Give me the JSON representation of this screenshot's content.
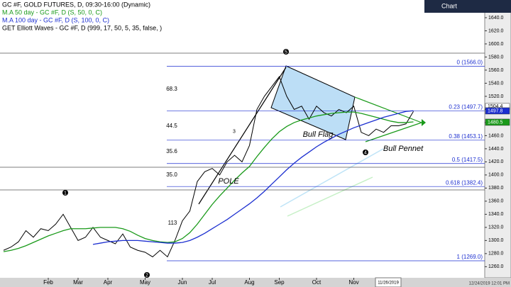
{
  "chart_data": {
    "type": "line",
    "header_tab": "Chart",
    "legend_lines": [
      {
        "text": "GC #F, GOLD FUTURES, D, 09:30-16:00 (Dynamic)",
        "color": "#000000"
      },
      {
        "text": "M.A 50 day - GC #F, D (S, 50, 0, C)",
        "color": "#1a9a1a"
      },
      {
        "text": "M.A 100 day - GC #F, D (S, 100, 0, C)",
        "color": "#1c2fd0"
      },
      {
        "text": "GET Elliott Waves - GC #F, D (999, 17, 50, 5, 35, false, )",
        "color": "#000000"
      }
    ],
    "categories": [
      null,
      null,
      null,
      null,
      null,
      null,
      "Feb",
      null,
      null,
      null,
      "Mar",
      null,
      null,
      null,
      "Apr",
      null,
      null,
      null,
      null,
      "May",
      null,
      null,
      null,
      null,
      "Jun",
      null,
      null,
      null,
      "Jul",
      null,
      null,
      null,
      null,
      "Aug",
      null,
      null,
      null,
      "Sep",
      null,
      null,
      null,
      null,
      "Oct",
      null,
      null,
      null,
      null,
      "Nov",
      null,
      null,
      null,
      null,
      null,
      null,
      null,
      null
    ],
    "series": [
      {
        "color": "#000000",
        "values": [
          1285,
          1290,
          1298,
          1315,
          1305,
          1318,
          1315,
          1325,
          1340,
          1320,
          1300,
          1305,
          1320,
          1305,
          1300,
          1295,
          1310,
          1290,
          1285,
          1282,
          1275,
          1285,
          1275,
          1300,
          1330,
          1345,
          1390,
          1405,
          1410,
          1400,
          1420,
          1430,
          1420,
          1445,
          1500,
          1520,
          1535,
          1550,
          1520,
          1500,
          1505,
          1485,
          1505,
          1495,
          1490,
          1500,
          1495,
          1505,
          1465,
          1460,
          1470,
          1465,
          1475,
          1475,
          1478,
          1497
        ]
      },
      {
        "color": "#1a9a1a",
        "values": [
          1283,
          1285,
          1288,
          1292,
          1297,
          1302,
          1307,
          1311,
          1315,
          1318,
          1318,
          1318,
          1319,
          1320,
          1320,
          1320,
          1318,
          1314,
          1308,
          1303,
          1300,
          1298,
          1297,
          1298,
          1303,
          1312,
          1325,
          1340,
          1355,
          1368,
          1380,
          1392,
          1403,
          1413,
          1428,
          1442,
          1455,
          1466,
          1474,
          1480,
          1484,
          1487,
          1490,
          1492,
          1494,
          1495,
          1496,
          1496,
          1494,
          1491,
          1488,
          1485,
          1482,
          1480,
          1480,
          1481
        ]
      },
      {
        "color": "#1c2fd0",
        "values": [
          null,
          null,
          null,
          null,
          null,
          null,
          null,
          null,
          null,
          null,
          null,
          null,
          1294,
          1296,
          1298,
          1299,
          1300,
          1300,
          1300,
          1299,
          1298,
          1297,
          1296,
          1296,
          1297,
          1300,
          1305,
          1311,
          1318,
          1325,
          1332,
          1340,
          1348,
          1356,
          1365,
          1375,
          1386,
          1397,
          1408,
          1418,
          1427,
          1435,
          1443,
          1450,
          1456,
          1462,
          1467,
          1472,
          1476,
          1480,
          1484,
          1488,
          1491,
          1494,
          1497,
          1498
        ]
      }
    ],
    "ylim": [
      1242,
      1667
    ],
    "yticks": [
      {
        "value": 1260,
        "label": "1260.0"
      },
      {
        "value": 1280,
        "label": "1280.0"
      },
      {
        "value": 1300,
        "label": "1300.0"
      },
      {
        "value": 1320,
        "label": "1320.0"
      },
      {
        "value": 1340,
        "label": "1340.0"
      },
      {
        "value": 1360,
        "label": "1360.0"
      },
      {
        "value": 1380,
        "label": "1380.0"
      },
      {
        "value": 1400,
        "label": "1400.0"
      },
      {
        "value": 1420,
        "label": "1420.0"
      },
      {
        "value": 1440,
        "label": "1440.0"
      },
      {
        "value": 1460,
        "label": "1460.0"
      },
      {
        "value": 1480,
        "label": "1480.0"
      },
      {
        "value": 1500,
        "label": "1500.0"
      },
      {
        "value": 1520,
        "label": "1520.0"
      },
      {
        "value": 1540,
        "label": "1540.0"
      },
      {
        "value": 1560,
        "label": "1560.0"
      },
      {
        "value": 1580,
        "label": "1580.0"
      },
      {
        "value": 1600,
        "label": "1600.0"
      },
      {
        "value": 1620,
        "label": "1620.0"
      },
      {
        "value": 1640,
        "label": "1640.0"
      }
    ],
    "fib_levels": [
      {
        "value": 1566,
        "label": "0 (1566.0)"
      },
      {
        "value": 1497.7,
        "label": "0.23 (1497.7)"
      },
      {
        "value": 1453.1,
        "label": "0.38 (1453.1)"
      },
      {
        "value": 1417.5,
        "label": "0.5 (1417.5)"
      },
      {
        "value": 1382.4,
        "label": "0.618 (1382.4)"
      },
      {
        "value": 1269,
        "label": "1 (1269.0)"
      }
    ],
    "price_labels": [
      {
        "value": 1504.4,
        "color": "#ffffff"
      },
      {
        "value": 1497.8,
        "color": "#1c2fd0"
      },
      {
        "value": 1480.5,
        "color": "#1a9a1a"
      }
    ],
    "annotations": [
      "Bull Flag",
      "Bull Pennet",
      "POLE",
      "68.3",
      "44.5",
      "35.6",
      "35.0",
      "113"
    ],
    "wave_labels": [
      "5",
      "1",
      "2",
      "4",
      "3"
    ],
    "cursor_date": "11/26/2019",
    "timestamp": "12/24/2019 12:01 PM"
  }
}
